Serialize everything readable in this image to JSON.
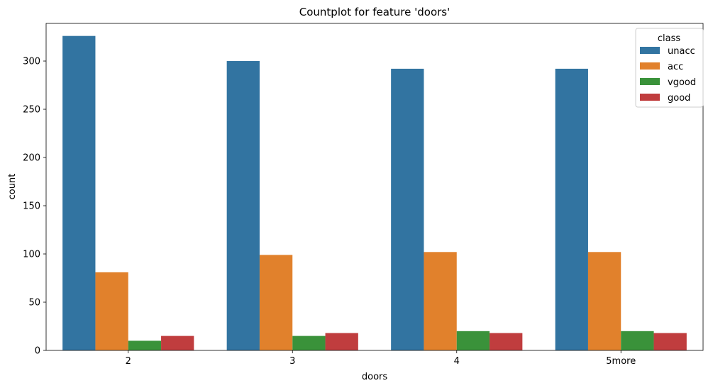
{
  "chart_data": {
    "type": "bar",
    "title": "Countplot for feature 'doors'",
    "xlabel": "doors",
    "ylabel": "count",
    "categories": [
      "2",
      "3",
      "4",
      "5more"
    ],
    "ylim": [
      0,
      339
    ],
    "yticks": [
      0,
      50,
      100,
      150,
      200,
      250,
      300
    ],
    "grid": false,
    "legend": {
      "title": "class",
      "position": "top-right"
    },
    "series": [
      {
        "name": "unacc",
        "color": "#3274a1",
        "values": [
          326,
          300,
          292,
          292
        ]
      },
      {
        "name": "acc",
        "color": "#e1812c",
        "values": [
          81,
          99,
          102,
          102
        ]
      },
      {
        "name": "vgood",
        "color": "#3a923a",
        "values": [
          10,
          15,
          20,
          20
        ]
      },
      {
        "name": "good",
        "color": "#c03d3e",
        "values": [
          15,
          18,
          18,
          18
        ]
      }
    ]
  }
}
